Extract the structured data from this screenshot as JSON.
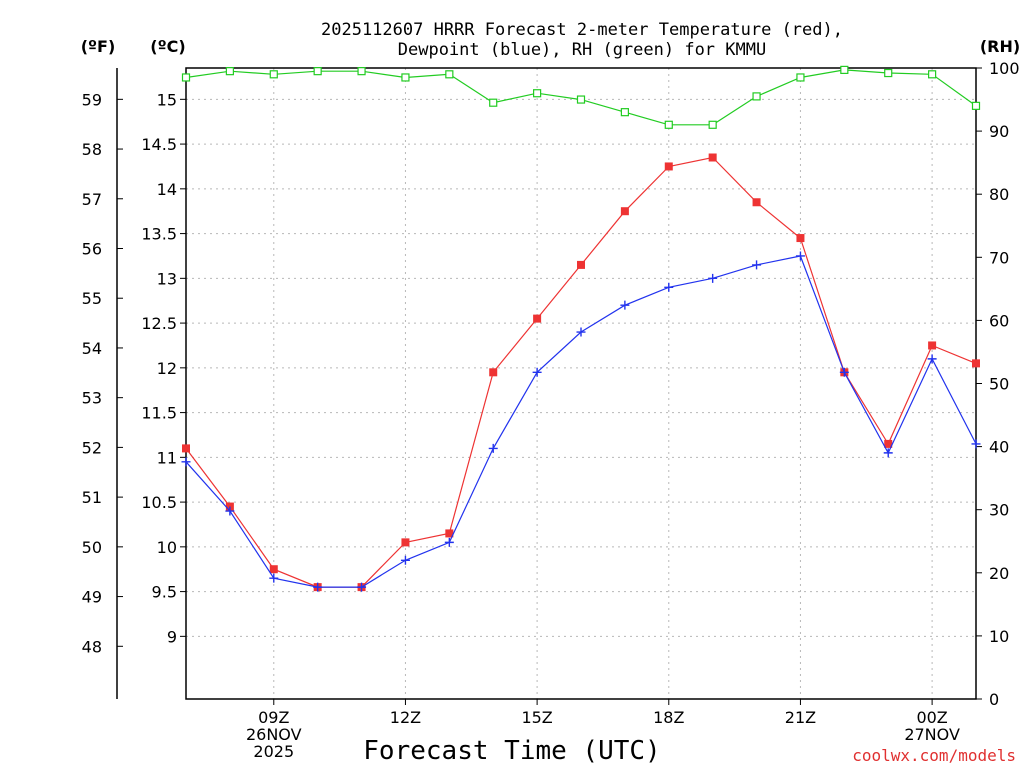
{
  "chart_data": {
    "type": "line",
    "title_line1": "2025112607 HRRR Forecast 2-meter Temperature (red),",
    "title_line2": "Dewpoint (blue), RH (green) for KMMU",
    "units": {
      "fahrenheit": "(ºF)",
      "celsius": "(ºC)",
      "rh": "(RH)"
    },
    "xlabel": "Forecast Time (UTC)",
    "credit": "coolwx.com/models",
    "x_hours": [
      7,
      8,
      9,
      10,
      11,
      12,
      13,
      14,
      15,
      16,
      17,
      18,
      19,
      20,
      21,
      22,
      23,
      24,
      25
    ],
    "x_range": [
      7,
      25
    ],
    "x_ticks": [
      {
        "hour": 9,
        "lines": [
          "09Z",
          "26NOV",
          "2025"
        ]
      },
      {
        "hour": 12,
        "lines": [
          "12Z"
        ]
      },
      {
        "hour": 15,
        "lines": [
          "15Z"
        ]
      },
      {
        "hour": 18,
        "lines": [
          "18Z"
        ]
      },
      {
        "hour": 21,
        "lines": [
          "21Z"
        ]
      },
      {
        "hour": 24,
        "lines": [
          "00Z",
          "27NOV"
        ]
      }
    ],
    "celsius_axis": {
      "range": [
        8.3,
        15.35
      ],
      "ticks": [
        "9",
        "9.5",
        "10",
        "10.5",
        "11",
        "11.5",
        "12",
        "12.5",
        "13",
        "13.5",
        "14",
        "14.5",
        "15"
      ]
    },
    "fahrenheit_axis": {
      "range": [
        46.94,
        59.63
      ],
      "ticks": [
        "48",
        "49",
        "50",
        "51",
        "52",
        "53",
        "54",
        "55",
        "56",
        "57",
        "58",
        "59"
      ]
    },
    "rh_axis": {
      "range": [
        0,
        100
      ],
      "ticks": [
        "0",
        "10",
        "20",
        "30",
        "40",
        "50",
        "60",
        "70",
        "80",
        "90",
        "100"
      ]
    },
    "series": [
      {
        "name": "Temperature",
        "color": "#ee3333",
        "marker": "filled-square",
        "axis": "celsius",
        "values": [
          11.1,
          10.45,
          9.75,
          9.55,
          9.55,
          10.05,
          10.15,
          11.95,
          12.55,
          13.15,
          13.75,
          14.25,
          14.35,
          13.85,
          13.45,
          11.95,
          11.15,
          12.25,
          12.05
        ]
      },
      {
        "name": "Dewpoint",
        "color": "#2233ee",
        "marker": "plus",
        "axis": "celsius",
        "values": [
          10.95,
          10.4,
          9.65,
          9.55,
          9.55,
          9.85,
          10.05,
          11.1,
          11.95,
          12.4,
          12.7,
          12.9,
          13.0,
          13.15,
          13.25,
          11.95,
          11.05,
          12.1,
          11.15
        ]
      },
      {
        "name": "RH",
        "color": "#22cc22",
        "marker": "open-square",
        "axis": "rh",
        "values": [
          98.5,
          99.5,
          99.0,
          99.5,
          99.5,
          98.5,
          99.0,
          94.5,
          96.0,
          95.0,
          93.0,
          91.0,
          91.0,
          95.5,
          98.5,
          99.7,
          99.2,
          99.0,
          94.0
        ]
      }
    ],
    "grid": "dotted"
  }
}
